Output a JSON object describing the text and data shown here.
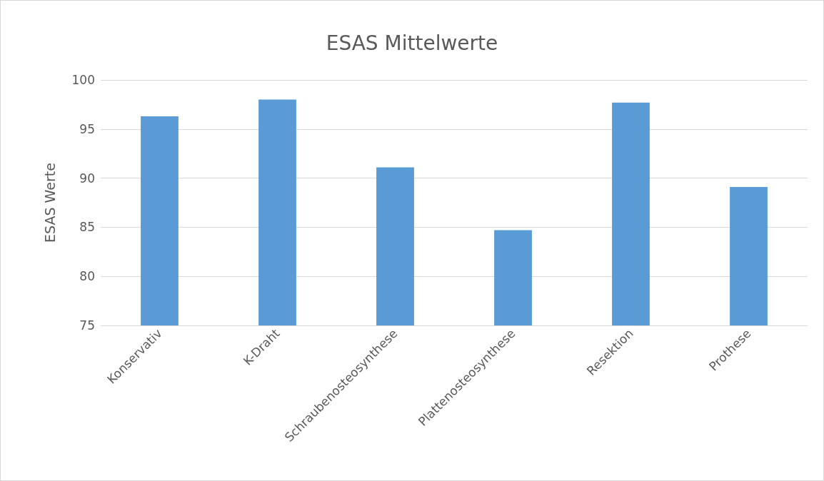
{
  "chart_data": {
    "type": "bar",
    "title": "ESAS Mittelwerte",
    "ylabel": "ESAS Werte",
    "categories": [
      "Konservativ",
      "K-Draht",
      "Schraubenosteosynthese",
      "Plattenosteosynthese",
      "Resektion",
      "Prothese"
    ],
    "values": [
      96.3,
      98.0,
      91.1,
      84.7,
      97.7,
      89.1
    ],
    "color": "#5b9bd5",
    "ylim": [
      75,
      100
    ],
    "yticks": [
      75,
      80,
      85,
      90,
      95,
      100
    ],
    "grid": "y"
  }
}
